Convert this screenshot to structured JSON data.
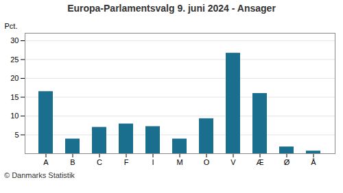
{
  "chart_data": {
    "type": "bar",
    "title": "Europa-Parlamentsvalg 9. juni 2024 - Ansager",
    "categories": [
      "A",
      "B",
      "C",
      "F",
      "I",
      "M",
      "O",
      "V",
      "Æ",
      "Ø",
      "Å"
    ],
    "values": [
      16.5,
      3.9,
      7.0,
      7.9,
      7.2,
      3.9,
      9.3,
      26.7,
      16.0,
      1.8,
      0.7
    ],
    "color": "#1a6e8e",
    "ylabel": "Pct.",
    "ylim": [
      0,
      32
    ],
    "yticks": [
      5,
      10,
      15,
      20,
      25,
      30
    ],
    "grid": true,
    "caption": "© Danmarks Statistik"
  }
}
